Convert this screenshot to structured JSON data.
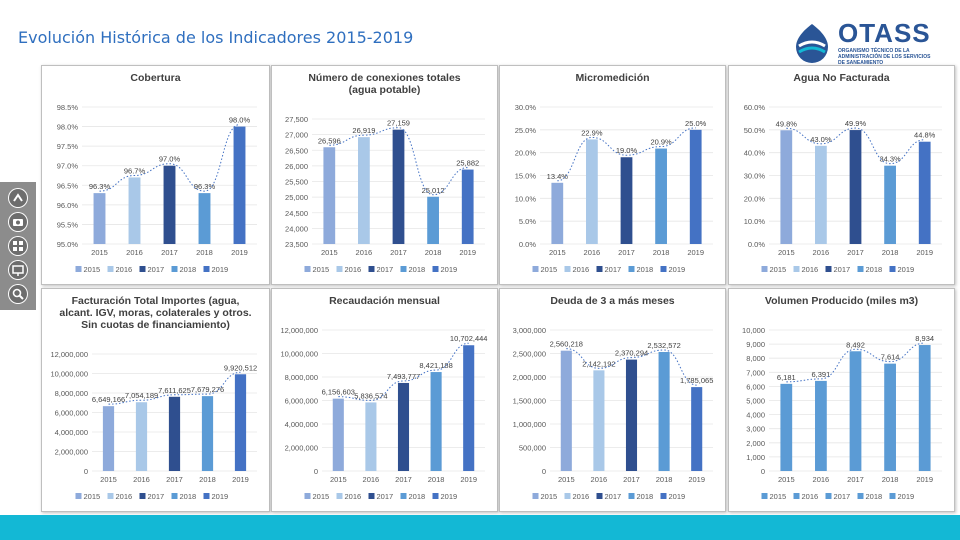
{
  "page": {
    "title": "Evolución Histórica de los Indicadores 2015-2019",
    "logo_text": "OTASS",
    "logo_subtitle": "ORGANISMO TÉCNICO DE LA ADMINISTRACIÓN DE LOS SERVICIOS DE SANEAMIENTO"
  },
  "toolbar": {
    "icons": [
      "share-icon",
      "camera-icon",
      "grid-icon",
      "presentation-icon",
      "zoom-icon"
    ]
  },
  "colors": {
    "series": [
      "#8eaadb",
      "#a9c8e8",
      "#2f4f8f",
      "#5b9bd5",
      "#4472c4"
    ],
    "trend": "#4472c4",
    "accent_bar": "#13b8d5",
    "title": "#2f6fbf"
  },
  "chart_data": [
    {
      "type": "bar",
      "title": "Cobertura",
      "categories": [
        "2015",
        "2016",
        "2017",
        "2018",
        "2019"
      ],
      "values": [
        96.3,
        96.7,
        97.0,
        96.3,
        98.0
      ],
      "labels": [
        "96.3%",
        "96.7%",
        "97.0%",
        "96.3%",
        "98.0%"
      ],
      "yticks": [
        "95.0%",
        "95.5%",
        "96.0%",
        "96.5%",
        "97.0%",
        "97.5%",
        "98.0%",
        "98.5%"
      ],
      "ylim": [
        95.0,
        98.5
      ],
      "legend": [
        "2015",
        "2016",
        "2017",
        "2018",
        "2019"
      ],
      "trendline": "polynomial"
    },
    {
      "type": "bar",
      "title": "Número de conexiones totales (agua potable)",
      "categories": [
        "2015",
        "2016",
        "2017",
        "2018",
        "2019"
      ],
      "values": [
        26596,
        26919,
        27159,
        25012,
        25882
      ],
      "labels": [
        "26,596",
        "26,919",
        "27,159",
        "25,012",
        "25,882"
      ],
      "yticks": [
        "23,500",
        "24,000",
        "24,500",
        "25,000",
        "25,500",
        "26,000",
        "26,500",
        "27,000",
        "27,500"
      ],
      "ylim": [
        23500,
        27500
      ],
      "legend": [
        "2015",
        "2016",
        "2017",
        "2018",
        "2019"
      ],
      "trendline": "polynomial"
    },
    {
      "type": "bar",
      "title": "Micromedición",
      "categories": [
        "2015",
        "2016",
        "2017",
        "2018",
        "2019"
      ],
      "values": [
        13.4,
        22.9,
        19.0,
        20.9,
        25.0
      ],
      "labels": [
        "13.4%",
        "22.9%",
        "19.0%",
        "20.9%",
        "25.0%"
      ],
      "yticks": [
        "0.0%",
        "5.0%",
        "10.0%",
        "15.0%",
        "20.0%",
        "25.0%",
        "30.0%"
      ],
      "ylim": [
        0,
        30
      ],
      "legend": [
        "2015",
        "2016",
        "2017",
        "2018",
        "2019"
      ],
      "trendline": "polynomial"
    },
    {
      "type": "bar",
      "title": "Agua No Facturada",
      "categories": [
        "2015",
        "2016",
        "2017",
        "2018",
        "2019"
      ],
      "values": [
        49.8,
        43.0,
        49.9,
        34.3,
        44.8
      ],
      "labels": [
        "49.8%",
        "43.0%",
        "49.9%",
        "34.3%",
        "44.8%"
      ],
      "yticks": [
        "0.0%",
        "10.0%",
        "20.0%",
        "30.0%",
        "40.0%",
        "50.0%",
        "60.0%"
      ],
      "ylim": [
        0,
        60
      ],
      "legend": [
        "2015",
        "2016",
        "2017",
        "2018",
        "2019"
      ],
      "trendline": "polynomial"
    },
    {
      "type": "bar",
      "title": "Facturación Total Importes (agua, alcant. IGV, moras, colaterales y otros. Sin cuotas de financiamiento)",
      "categories": [
        "2015",
        "2016",
        "2017",
        "2018",
        "2019"
      ],
      "values": [
        6649166,
        7054189,
        7611625,
        7679276,
        9920512
      ],
      "labels": [
        "6,649,166",
        "7,054,189",
        "7,611,625",
        "7,679,276",
        "9,920,512"
      ],
      "yticks": [
        "0",
        "2,000,000",
        "4,000,000",
        "6,000,000",
        "8,000,000",
        "10,000,000",
        "12,000,000"
      ],
      "ylim": [
        0,
        12000000
      ],
      "legend": [
        "2015",
        "2016",
        "2017",
        "2018",
        "2019"
      ],
      "trendline": "polynomial"
    },
    {
      "type": "bar",
      "title": "Recaudación mensual",
      "categories": [
        "2015",
        "2016",
        "2017",
        "2018",
        "2019"
      ],
      "values": [
        6156603,
        5836574,
        7493777,
        8421188,
        10702444
      ],
      "labels": [
        "6,156,603",
        "5,836,574",
        "7,493,777",
        "8,421,188",
        "10,702,444"
      ],
      "yticks": [
        "0",
        "2,000,000",
        "4,000,000",
        "6,000,000",
        "8,000,000",
        "10,000,000",
        "12,000,000"
      ],
      "ylim": [
        0,
        12000000
      ],
      "legend": [
        "2015",
        "2016",
        "2017",
        "2018",
        "2019"
      ],
      "trendline": "polynomial"
    },
    {
      "type": "bar",
      "title": "Deuda de 3 a más meses",
      "categories": [
        "2015",
        "2016",
        "2017",
        "2018",
        "2019"
      ],
      "values": [
        2560218,
        2142192,
        2370294,
        2532572,
        1785065
      ],
      "labels": [
        "2,560,218",
        "2,142,192",
        "2,370,294",
        "2,532,572",
        "1,785,065"
      ],
      "yticks": [
        "0",
        "500,000",
        "1,000,000",
        "1,500,000",
        "2,000,000",
        "2,500,000",
        "3,000,000"
      ],
      "ylim": [
        0,
        3000000
      ],
      "legend": [
        "2015",
        "2016",
        "2017",
        "2018",
        "2019"
      ],
      "trendline": "polynomial"
    },
    {
      "type": "bar",
      "title": "Volumen Producido (miles m3)",
      "categories": [
        "2015",
        "2016",
        "2017",
        "2018",
        "2019"
      ],
      "values": [
        6181,
        6391,
        8492,
        7614,
        8934
      ],
      "labels": [
        "6,181",
        "6,391",
        "8,492",
        "7,614",
        "8,934"
      ],
      "yticks": [
        "0",
        "1,000",
        "2,000",
        "3,000",
        "4,000",
        "5,000",
        "6,000",
        "7,000",
        "8,000",
        "9,000",
        "10,000"
      ],
      "ylim": [
        0,
        10000
      ],
      "legend": [
        "2015",
        "2016",
        "2017",
        "2018",
        "2019"
      ],
      "trendline": "polynomial",
      "single_color": true
    }
  ]
}
